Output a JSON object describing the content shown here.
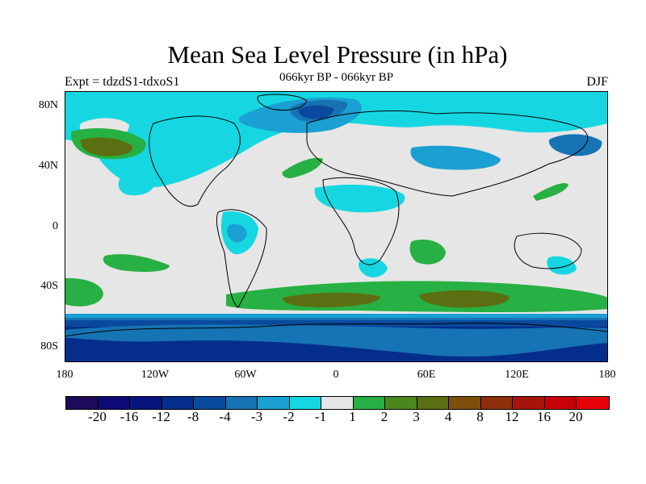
{
  "header": {
    "title": "Mean Sea Level Pressure (in hPa)",
    "left_label": "Expt = tdzdS1-tdxoS1",
    "center_label": "066kyr BP - 066kyr BP",
    "right_label": "DJF"
  },
  "axes": {
    "lat_labels": [
      "80N",
      "40N",
      "0",
      "40S",
      "80S"
    ],
    "lon_labels": [
      "180",
      "120W",
      "60W",
      "0",
      "60E",
      "120E",
      "180"
    ]
  },
  "colorbar": {
    "labels": [
      "-20",
      "-16",
      "-12",
      "-8",
      "-4",
      "-3",
      "-2",
      "-1",
      "1",
      "2",
      "3",
      "4",
      "8",
      "12",
      "16",
      "20"
    ],
    "colors": [
      "#1e0a5a",
      "#0d0a78",
      "#08147f",
      "#052d8c",
      "#0a4a9e",
      "#1673b4",
      "#1aa0d2",
      "#16d7e1",
      "#e6e6e6",
      "#27b043",
      "#4a871f",
      "#5c6e12",
      "#7d4f0a",
      "#8e2e0a",
      "#a5140a",
      "#c8000a",
      "#e6000a"
    ]
  }
}
